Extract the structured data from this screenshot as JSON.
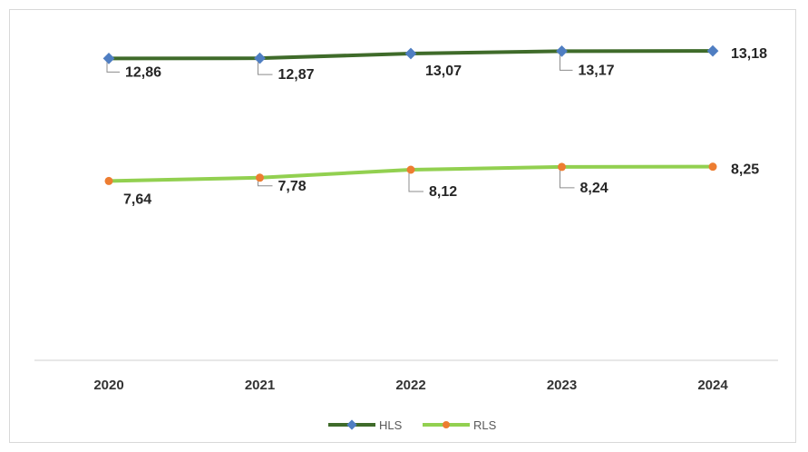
{
  "chart_data": {
    "type": "line",
    "categories": [
      "2020",
      "2021",
      "2022",
      "2023",
      "2024"
    ],
    "series": [
      {
        "name": "HLS",
        "values": [
          12.86,
          12.87,
          13.07,
          13.17,
          13.18
        ],
        "labels": [
          "12,86",
          "12,87",
          "13,07",
          "13,17",
          "13,18"
        ],
        "line_color": "#3f6b2a",
        "marker_color": "#4f7ec2"
      },
      {
        "name": "RLS",
        "values": [
          7.64,
          7.78,
          8.12,
          8.24,
          8.25
        ],
        "labels": [
          "7,64",
          "7,78",
          "8,12",
          "8,24",
          "8,25"
        ],
        "line_color": "#92d050",
        "marker_color": "#ed7d31"
      }
    ],
    "ylim": [
      0,
      14.5
    ],
    "grid": false,
    "legend_position": "bottom"
  },
  "colors": {
    "axis": "#d9d9d9",
    "leader": "#8c8c8c"
  }
}
